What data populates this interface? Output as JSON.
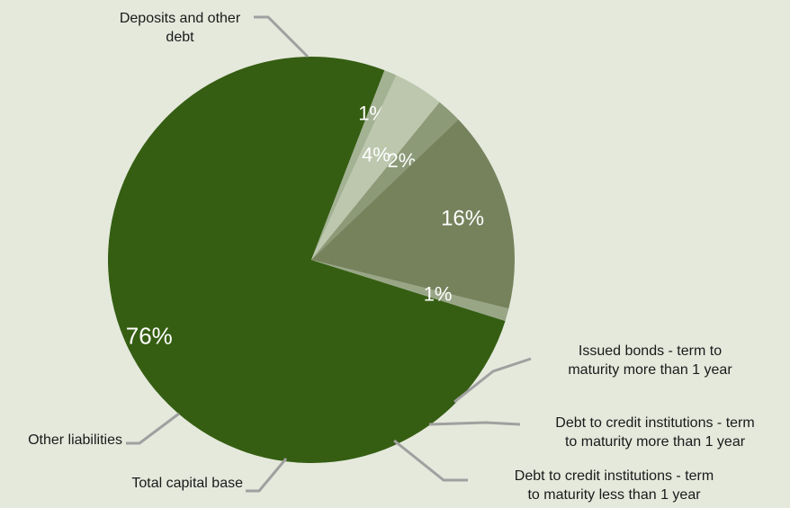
{
  "chart_data": {
    "type": "pie",
    "title": "",
    "slices": [
      {
        "label": "Deposits and other debt",
        "value": 76,
        "display": "76%",
        "color": "#355e12"
      },
      {
        "label": "Issued bonds - term to maturity more than 1 year",
        "value": 1,
        "display": "1%",
        "color": "#a4b294"
      },
      {
        "label": "Debt to credit institutions - term to maturity more than 1 year",
        "value": 4,
        "display": "4%",
        "color": "#bcc7ae"
      },
      {
        "label": "Debt to credit institutions - term to maturity less than 1 year",
        "value": 2,
        "display": "2%",
        "color": "#8c9a78"
      },
      {
        "label": "Total capital base",
        "value": 16,
        "display": "16%",
        "color": "#76825c"
      },
      {
        "label": "Other liabilities",
        "value": 1,
        "display": "1%",
        "color": "#98a686"
      }
    ],
    "callouts": {
      "deposits": [
        "Deposits and other",
        "debt"
      ],
      "bonds": [
        "Issued bonds - term to",
        "maturity more than 1 year"
      ],
      "credit_long": [
        "Debt to credit institutions - term",
        "to maturity more than 1 year"
      ],
      "credit_short": [
        "Debt to credit institutions - term",
        "to maturity less than 1 year"
      ],
      "capital": [
        "Total capital base"
      ],
      "other": [
        "Other liabilities"
      ]
    },
    "colors": {
      "background": "#e5e9dc",
      "leader_line": "#a0a0a0",
      "slice_label": "#ffffff"
    }
  }
}
